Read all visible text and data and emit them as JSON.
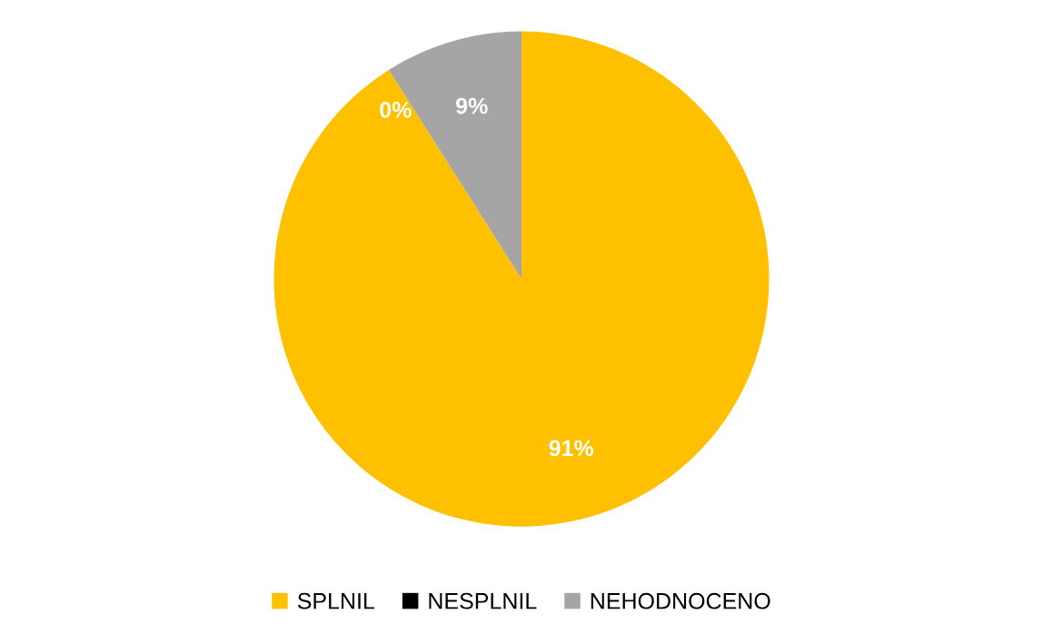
{
  "chart_data": {
    "type": "pie",
    "categories": [
      "SPLNIL",
      "NESPLNIL",
      "NEHODNOCENO"
    ],
    "values": [
      91,
      0,
      9
    ],
    "colors": [
      "#ffc000",
      "#000000",
      "#a5a5a5"
    ],
    "value_labels": [
      "91%",
      "0%",
      "9%"
    ],
    "legend": "bottom"
  }
}
